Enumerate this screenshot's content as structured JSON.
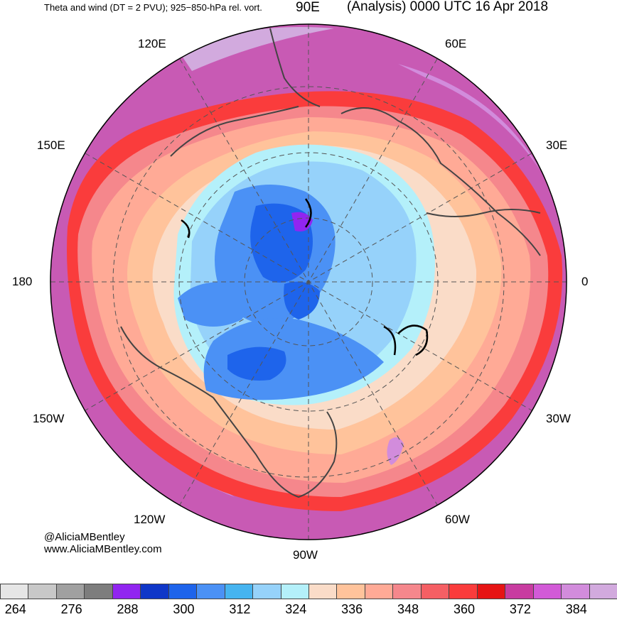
{
  "title_left": "Theta and wind (DT = 2 PVU); 925−850-hPa rel. vort.",
  "title_right": "(Analysis) 0000 UTC 16 Apr 2018",
  "longitude_labels": {
    "lon_90e": "90E",
    "lon_60e": "60E",
    "lon_120e": "120E",
    "lon_30e": "30E",
    "lon_150e": "150E",
    "lon_180": "180",
    "lon_0": "0",
    "lon_150w": "150W",
    "lon_30w": "30W",
    "lon_120w": "120W",
    "lon_60w": "60W",
    "lon_90w": "90W"
  },
  "credit": {
    "handle": "@AliciaMBentley",
    "website": "www.AliciaMBentley.com"
  },
  "colorbar": {
    "colors": [
      "#e6e6e6",
      "#c8c8c8",
      "#a0a0a0",
      "#7d7d7d",
      "#9125f0",
      "#0f37c8",
      "#1e64eb",
      "#4b91f5",
      "#46b4f0",
      "#96d2fa",
      "#b4f0fa",
      "#fadcc8",
      "#ffc39b",
      "#ffaa96",
      "#f5878c",
      "#f55f64",
      "#fa3c3c",
      "#e61414",
      "#c83ca0",
      "#d25ad7",
      "#d28cdc",
      "#d2aade"
    ],
    "tick_labels": [
      "264",
      "276",
      "288",
      "300",
      "312",
      "324",
      "336",
      "348",
      "360",
      "372",
      "384"
    ]
  }
}
